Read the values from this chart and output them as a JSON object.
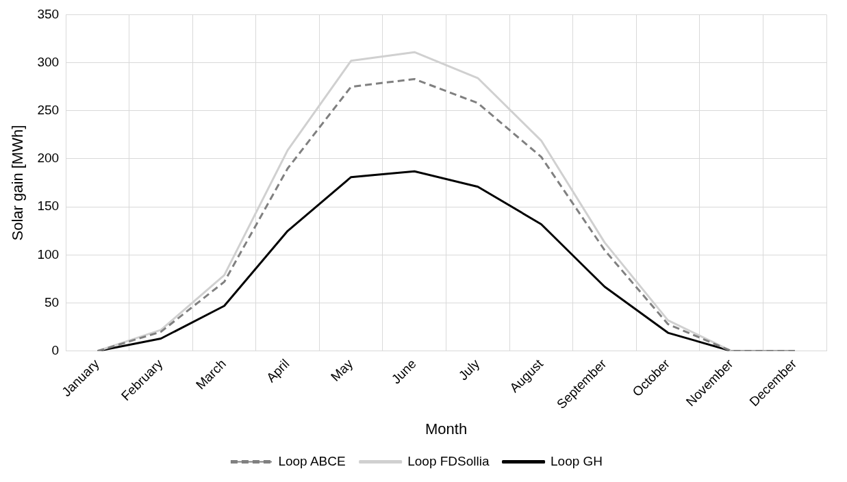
{
  "chart_data": {
    "type": "line",
    "xlabel": "Month",
    "ylabel": "Solar gain [MWh]",
    "categories": [
      "January",
      "February",
      "March",
      "April",
      "May",
      "June",
      "July",
      "August",
      "September",
      "October",
      "November",
      "December"
    ],
    "series": [
      {
        "name": "Loop ABCE",
        "color": "#808080",
        "line_style": "dashed",
        "values": [
          0,
          20,
          72,
          190,
          275,
          283,
          258,
          202,
          105,
          28,
          0,
          0
        ]
      },
      {
        "name": "Loop FDSollia",
        "color": "#d0d0d0",
        "line_style": "solid",
        "values": [
          0,
          22,
          79,
          209,
          302,
          311,
          284,
          219,
          113,
          32,
          0,
          0
        ]
      },
      {
        "name": "Loop GH",
        "color": "#000000",
        "line_style": "solid",
        "values": [
          0,
          13,
          47,
          125,
          181,
          187,
          171,
          132,
          67,
          19,
          0,
          0
        ]
      }
    ],
    "ylim": [
      0,
      350
    ],
    "yticks": [
      0,
      50,
      100,
      150,
      200,
      250,
      300,
      350
    ],
    "grid": true,
    "legend": "bottom",
    "marker": "none"
  }
}
